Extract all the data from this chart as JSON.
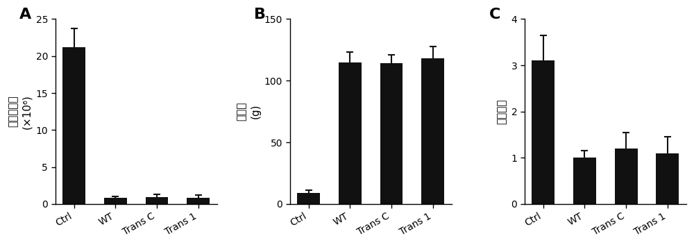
{
  "panel_A": {
    "label": "A",
    "categories": [
      "Ctrl",
      "WT",
      "Trans C",
      "Trans 1"
    ],
    "values": [
      21.2,
      0.8,
      0.95,
      0.88
    ],
    "errors": [
      2.5,
      0.2,
      0.35,
      0.3
    ],
    "ylabel_main": "卵囊拍出量",
    "ylabel_sub": "(×10⁶)",
    "ylim": [
      0,
      25
    ],
    "yticks": [
      0,
      5,
      10,
      15,
      20,
      25
    ]
  },
  "panel_B": {
    "label": "B",
    "categories": [
      "Ctrl",
      "WT",
      "Trans C",
      "Trans 1"
    ],
    "values": [
      9.0,
      115.0,
      114.0,
      118.0
    ],
    "errors": [
      2.0,
      8.0,
      7.0,
      10.0
    ],
    "ylabel_main": "体增重",
    "ylabel_sub": "(g)",
    "ylim": [
      0,
      150
    ],
    "yticks": [
      0,
      50,
      100,
      150
    ]
  },
  "panel_C": {
    "label": "C",
    "categories": [
      "Ctrl",
      "WT",
      "Trans C",
      "Trans 1"
    ],
    "values": [
      3.1,
      1.0,
      1.2,
      1.1
    ],
    "errors": [
      0.55,
      0.15,
      0.35,
      0.35
    ],
    "ylabel_main": "病变计分",
    "ylabel_sub": "",
    "ylim": [
      0,
      4
    ],
    "yticks": [
      0,
      1,
      2,
      3,
      4
    ]
  },
  "bar_color": "#111111",
  "bar_width": 0.55,
  "background_color": "#ffffff",
  "tick_fontsize": 10,
  "xlabel_fontsize": 10,
  "ylabel_fontsize": 11,
  "panel_label_fontsize": 16
}
